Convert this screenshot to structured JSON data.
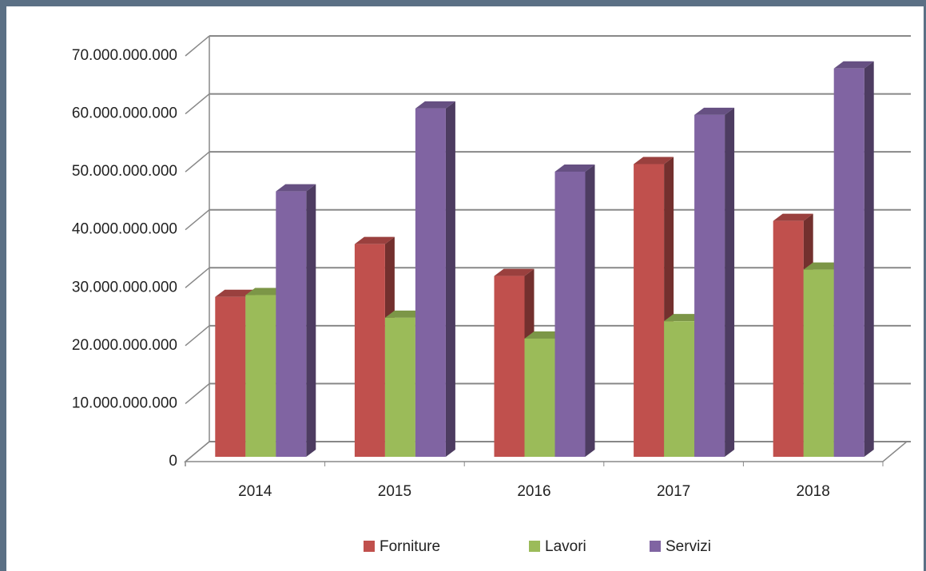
{
  "chart_data": {
    "type": "bar3d",
    "categories": [
      "2014",
      "2015",
      "2016",
      "2017",
      "2018"
    ],
    "series": [
      {
        "name": "Forniture",
        "color": "#c0504d",
        "values": [
          27600000000,
          36700000000,
          31200000000,
          50500000000,
          40700000000
        ]
      },
      {
        "name": "Lavori",
        "color": "#9bbb59",
        "values": [
          27900000000,
          24000000000,
          20400000000,
          23400000000,
          32300000000
        ]
      },
      {
        "name": "Servizi",
        "color": "#8064a2",
        "values": [
          45800000000,
          60100000000,
          49200000000,
          59000000000,
          67000000000
        ]
      }
    ],
    "ylim": [
      0,
      70000000000
    ],
    "yticks": [
      0,
      {
        "value": 10000000000,
        "label": "10.000.000.000"
      },
      {
        "value": 20000000000,
        "label": "20.000.000.000"
      },
      {
        "value": 30000000000,
        "label": "30.000.000.000"
      },
      {
        "value": 40000000000,
        "label": "40.000.000.000"
      },
      {
        "value": 50000000000,
        "label": "50.000.000.000"
      },
      {
        "value": 60000000000,
        "label": "60.000.000.000"
      },
      {
        "value": 70000000000,
        "label": "70.000.000.000"
      }
    ],
    "grid": true,
    "legend": "bottom"
  }
}
